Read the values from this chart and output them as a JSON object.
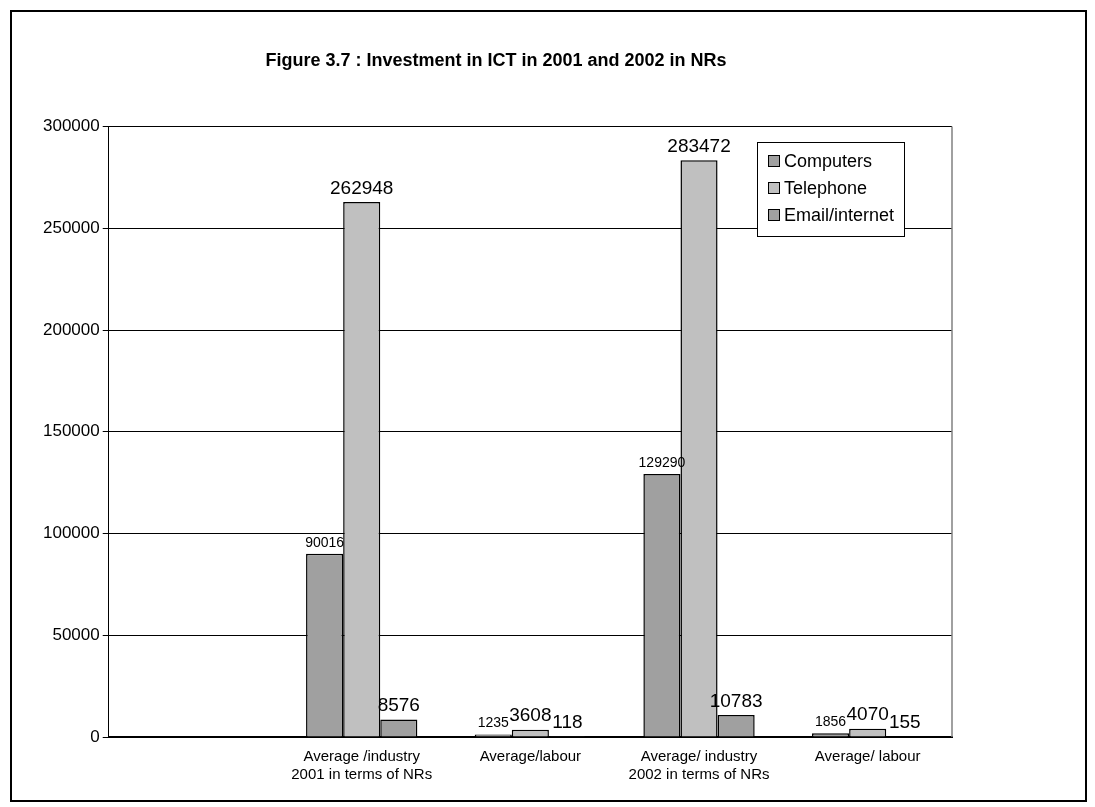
{
  "chart_data": {
    "type": "bar",
    "title": "Figure 3.7 : Investment in ICT in 2001 and 2002 in NRs",
    "categories": [
      null,
      "Average /industry 2001 in terms of NRs",
      "Average/labour",
      "Average/ industry 2002 in terms of NRs",
      "Average/ labour"
    ],
    "series": [
      {
        "name": "Computers",
        "color": "#a0a0a0",
        "values": [
          null,
          90016,
          1235,
          129290,
          1856
        ]
      },
      {
        "name": "Telephone",
        "color": "#c0c0c0",
        "values": [
          null,
          262948,
          3608,
          283472,
          4070
        ]
      },
      {
        "name": "Email/internet",
        "color": "#a0a0a0",
        "values": [
          null,
          8576,
          118,
          10783,
          155
        ]
      }
    ],
    "ylim": [
      0,
      300000
    ],
    "yticks": [
      0,
      50000,
      100000,
      150000,
      200000,
      250000,
      300000
    ],
    "grid": "y",
    "legend": "top right",
    "data_labels": true
  }
}
